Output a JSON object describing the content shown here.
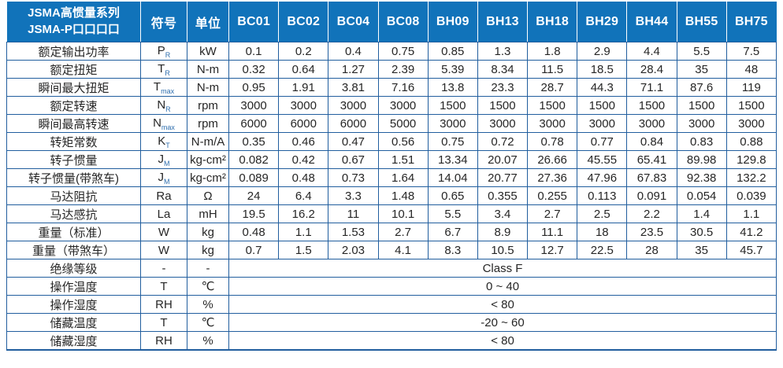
{
  "table": {
    "header": {
      "series_line1": "JSMA高惯量系列",
      "series_line2": "JSMA-P口口口口",
      "symbol_col": "符号",
      "unit_col": "单位",
      "models": [
        "BC01",
        "BC02",
        "BC04",
        "BC08",
        "BH09",
        "BH13",
        "BH18",
        "BH29",
        "BH44",
        "BH55",
        "BH75"
      ]
    },
    "rows": [
      {
        "label": "额定输出功率",
        "symbol": "P",
        "sub": "R",
        "unit": "kW",
        "values": [
          "0.1",
          "0.2",
          "0.4",
          "0.75",
          "0.85",
          "1.3",
          "1.8",
          "2.9",
          "4.4",
          "5.5",
          "7.5"
        ]
      },
      {
        "label": "额定扭矩",
        "symbol": "T",
        "sub": "R",
        "unit": "N-m",
        "values": [
          "0.32",
          "0.64",
          "1.27",
          "2.39",
          "5.39",
          "8.34",
          "11.5",
          "18.5",
          "28.4",
          "35",
          "48"
        ]
      },
      {
        "label": "瞬间最大扭矩",
        "symbol": "T",
        "sub": "max",
        "unit": "N-m",
        "values": [
          "0.95",
          "1.91",
          "3.81",
          "7.16",
          "13.8",
          "23.3",
          "28.7",
          "44.3",
          "71.1",
          "87.6",
          "119"
        ]
      },
      {
        "label": "额定转速",
        "symbol": "N",
        "sub": "R",
        "unit": "rpm",
        "values": [
          "3000",
          "3000",
          "3000",
          "3000",
          "1500",
          "1500",
          "1500",
          "1500",
          "1500",
          "1500",
          "1500"
        ]
      },
      {
        "label": "瞬间最高转速",
        "symbol": "N",
        "sub": "max",
        "unit": "rpm",
        "values": [
          "6000",
          "6000",
          "6000",
          "5000",
          "3000",
          "3000",
          "3000",
          "3000",
          "3000",
          "3000",
          "3000"
        ]
      },
      {
        "label": "转矩常数",
        "symbol": "K",
        "sub": "T",
        "unit": "N-m/A",
        "values": [
          "0.35",
          "0.46",
          "0.47",
          "0.56",
          "0.75",
          "0.72",
          "0.78",
          "0.77",
          "0.84",
          "0.83",
          "0.88"
        ]
      },
      {
        "label": "转子惯量",
        "symbol": "J",
        "sub": "M",
        "unit": "kg-cm²",
        "values": [
          "0.082",
          "0.42",
          "0.67",
          "1.51",
          "13.34",
          "20.07",
          "26.66",
          "45.55",
          "65.41",
          "89.98",
          "129.8"
        ]
      },
      {
        "label": "转子惯量(带煞车)",
        "symbol": "J",
        "sub": "M",
        "unit": "kg-cm²",
        "values": [
          "0.089",
          "0.48",
          "0.73",
          "1.64",
          "14.04",
          "20.77",
          "27.36",
          "47.96",
          "67.83",
          "92.38",
          "132.2"
        ]
      },
      {
        "label": "马达阻抗",
        "symbol": "Ra",
        "sub": "",
        "unit": "Ω",
        "values": [
          "24",
          "6.4",
          "3.3",
          "1.48",
          "0.65",
          "0.355",
          "0.255",
          "0.113",
          "0.091",
          "0.054",
          "0.039"
        ]
      },
      {
        "label": "马达感抗",
        "symbol": "La",
        "sub": "",
        "unit": "mH",
        "values": [
          "19.5",
          "16.2",
          "11",
          "10.1",
          "5.5",
          "3.4",
          "2.7",
          "2.5",
          "2.2",
          "1.4",
          "1.1"
        ]
      },
      {
        "label": "重量（标准）",
        "symbol": "W",
        "sub": "",
        "unit": "kg",
        "values": [
          "0.48",
          "1.1",
          "1.53",
          "2.7",
          "6.7",
          "8.9",
          "11.1",
          "18",
          "23.5",
          "30.5",
          "41.2"
        ]
      },
      {
        "label": "重量（带煞车）",
        "symbol": "W",
        "sub": "",
        "unit": "kg",
        "values": [
          "0.7",
          "1.5",
          "2.03",
          "4.1",
          "8.3",
          "10.5",
          "12.7",
          "22.5",
          "28",
          "35",
          "45.7"
        ]
      },
      {
        "label": "绝缘等级",
        "symbol": "-",
        "sub": "",
        "unit": "-",
        "merged": "Class F"
      },
      {
        "label": "操作温度",
        "symbol": "T",
        "sub": "",
        "unit": "℃",
        "merged": "0 ~ 40"
      },
      {
        "label": "操作湿度",
        "symbol": "RH",
        "sub": "",
        "unit": "%",
        "merged": "< 80"
      },
      {
        "label": "储藏温度",
        "symbol": "T",
        "sub": "",
        "unit": "℃",
        "merged": "-20 ~ 60"
      },
      {
        "label": "储藏湿度",
        "symbol": "RH",
        "sub": "",
        "unit": "%",
        "merged": "< 80"
      }
    ],
    "colors": {
      "header_bg": "#1173ba",
      "header_text": "#ffffff",
      "grid_line": "#215e9e",
      "body_text": "#262626"
    }
  }
}
